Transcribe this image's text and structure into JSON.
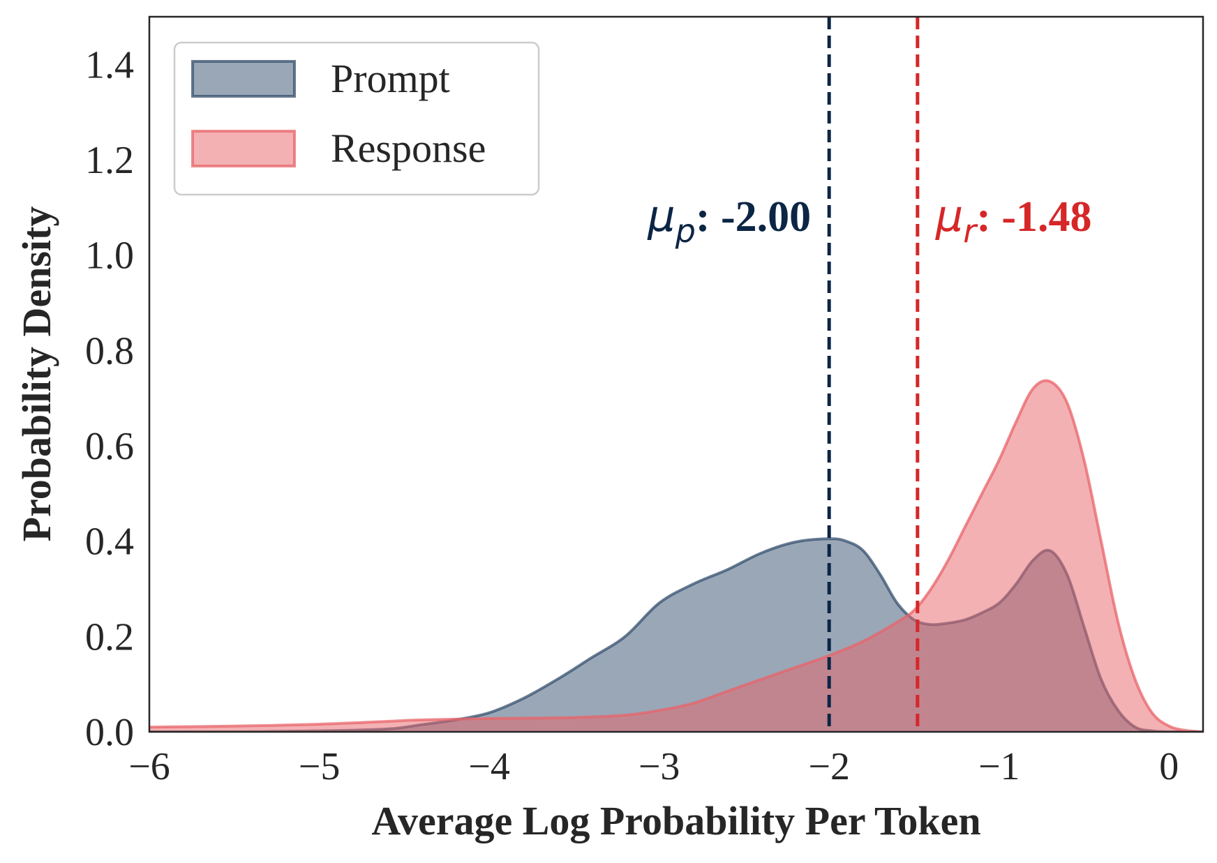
{
  "chart_data": {
    "type": "area",
    "title": "",
    "xlabel": "Average Log Probability Per Token",
    "ylabel": "Probability Density",
    "xlim": [
      -6,
      0.2
    ],
    "ylim": [
      0,
      1.5
    ],
    "xticks": [
      -6,
      -5,
      -4,
      -3,
      -2,
      -1,
      0
    ],
    "xtick_labels": [
      "−6",
      "−5",
      "−4",
      "−3",
      "−2",
      "−1",
      "0"
    ],
    "yticks": [
      0,
      0.2,
      0.4,
      0.6,
      0.8,
      1.0,
      1.2,
      1.4
    ],
    "ytick_labels": [
      "0.0",
      "0.2",
      "0.4",
      "0.6",
      "0.8",
      "1.0",
      "1.2",
      "1.4"
    ],
    "grid": false,
    "legend_position": "top-left",
    "series": [
      {
        "name": "Prompt",
        "color": "#35506f",
        "x": [
          -6.0,
          -5.5,
          -5.0,
          -4.6,
          -4.4,
          -4.2,
          -4.0,
          -3.8,
          -3.6,
          -3.4,
          -3.2,
          -3.0,
          -2.8,
          -2.6,
          -2.4,
          -2.2,
          -2.0,
          -1.9,
          -1.8,
          -1.7,
          -1.6,
          -1.5,
          -1.4,
          -1.3,
          -1.2,
          -1.1,
          -1.0,
          -0.9,
          -0.8,
          -0.7,
          -0.6,
          -0.5,
          -0.4,
          -0.3,
          -0.2,
          -0.1,
          0.0,
          0.2
        ],
        "y": [
          0.0,
          0.0,
          0.002,
          0.006,
          0.015,
          0.025,
          0.04,
          0.07,
          0.11,
          0.155,
          0.2,
          0.27,
          0.31,
          0.34,
          0.375,
          0.398,
          0.405,
          0.4,
          0.38,
          0.33,
          0.27,
          0.235,
          0.225,
          0.228,
          0.235,
          0.25,
          0.27,
          0.31,
          0.36,
          0.38,
          0.33,
          0.22,
          0.11,
          0.045,
          0.01,
          0.002,
          0.0,
          0.0
        ]
      },
      {
        "name": "Response",
        "color": "#e8646a",
        "x": [
          -6.0,
          -5.5,
          -5.0,
          -4.6,
          -4.4,
          -4.0,
          -3.5,
          -3.2,
          -3.0,
          -2.8,
          -2.6,
          -2.4,
          -2.2,
          -2.0,
          -1.8,
          -1.6,
          -1.5,
          -1.4,
          -1.3,
          -1.2,
          -1.1,
          -1.0,
          -0.9,
          -0.8,
          -0.7,
          -0.6,
          -0.5,
          -0.4,
          -0.3,
          -0.2,
          -0.1,
          0.0,
          0.1,
          0.2
        ],
        "y": [
          0.01,
          0.012,
          0.016,
          0.022,
          0.025,
          0.028,
          0.03,
          0.035,
          0.045,
          0.06,
          0.085,
          0.11,
          0.135,
          0.16,
          0.19,
          0.23,
          0.255,
          0.3,
          0.36,
          0.43,
          0.5,
          0.57,
          0.65,
          0.72,
          0.735,
          0.69,
          0.57,
          0.4,
          0.23,
          0.11,
          0.04,
          0.012,
          0.003,
          0.0
        ]
      }
    ],
    "vlines": [
      {
        "name": "prompt-mean",
        "x": -2.0,
        "color": "#0b2545",
        "label_symbol": "μ",
        "label_sub": "p",
        "label_value": ": -2.00",
        "label_side": "left",
        "label_y": 1.08
      },
      {
        "name": "response-mean",
        "x": -1.48,
        "color": "#d62728",
        "label_symbol": "μ",
        "label_sub": "r",
        "label_value": ": -1.48",
        "label_side": "right",
        "label_y": 1.08
      }
    ]
  }
}
